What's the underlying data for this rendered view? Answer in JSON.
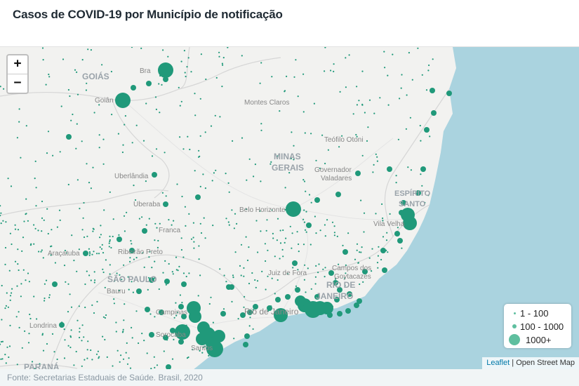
{
  "title": "Casos de COVID-19 por Município de notificação",
  "zoom": {
    "in_label": "+",
    "out_label": "−"
  },
  "legend": [
    {
      "label": "1 - 100"
    },
    {
      "label": "100 - 1000"
    },
    {
      "label": "1000+"
    }
  ],
  "attribution": {
    "leaflet": "Leaflet",
    "separator": " | ",
    "osm": "Open Street Map"
  },
  "footer": "Fonte: Secretarias Estaduais de Saúde. Brasil, 2020",
  "map_labels": {
    "goias": "GOIÁS",
    "minas_gerais_1": "MINAS",
    "minas_gerais_2": "GERAIS",
    "sao_paulo": "SÃO PAULO",
    "rio_de_janeiro_1": "RIO DE",
    "rio_de_janeiro_2": "JANEIRO",
    "espirito_santo_1": "ESPÍRITO",
    "espirito_santo_2": "SANTO",
    "parana": "PARANÁ",
    "brasilia": "Bra",
    "goiania": "Goiân",
    "montes_claros": "Montes Claros",
    "teofilo_otoni": "Teófilo Otoni",
    "governador_valadares_1": "Governador",
    "governador_valadares_2": "Valadares",
    "uberlandia": "Uberlândia",
    "uberaba": "Uberaba",
    "belo_horizonte": "Belo Horizonte",
    "franca": "Franca",
    "aracatuba": "Araçatuba",
    "ribeirao_preto": "Ribeirão Preto",
    "vila_velha": "Vila Velha",
    "juiz_de_fora": "Juiz de Fora",
    "campos_1": "Campos dos",
    "campos_2": "Goytacazes",
    "bauru": "Bauru",
    "campinas": "Campinas",
    "rio_city": "Rio de Janeiro",
    "londrina": "Londrina",
    "sorocaba": "Sorocaba",
    "santos": "Santos"
  },
  "case_categories": [
    "1 - 100",
    "100 - 1000",
    "1000+"
  ],
  "colors": {
    "marker": "#20997a",
    "land": "#f2f2f0",
    "water": "#aad3df",
    "border": "#d8d8d8"
  }
}
